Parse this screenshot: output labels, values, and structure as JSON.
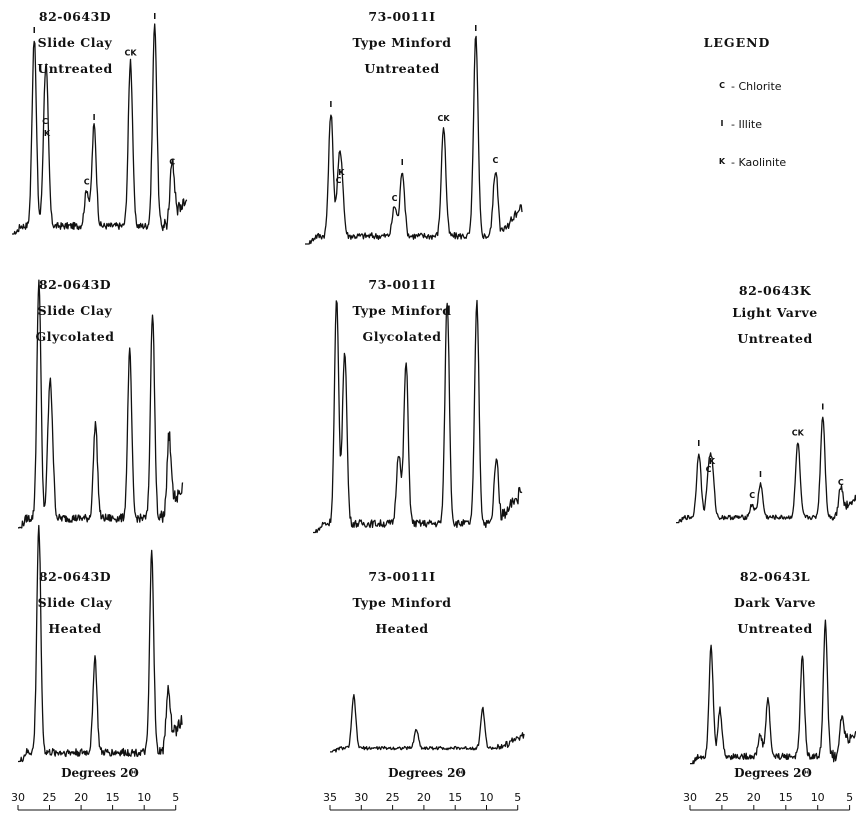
{
  "legend": {
    "title": "LEGEND",
    "items": [
      {
        "symbol": "C",
        "label": "Chlorite"
      },
      {
        "symbol": "I",
        "label": "Illite"
      },
      {
        "symbol": "K",
        "label": "Kaolinite"
      }
    ]
  },
  "chart_data": [
    {
      "type": "line",
      "labels": [
        "82-0643D",
        "Slide Clay",
        "Untreated"
      ],
      "peaks": [
        {
          "x": 26.7,
          "h": 0.93,
          "mark": "I"
        },
        {
          "x": 25.1,
          "h": 0.48,
          "mark": "C"
        },
        {
          "x": 24.8,
          "h": 0.42,
          "mark": "K"
        },
        {
          "x": 18.9,
          "h": 0.18,
          "mark": "C"
        },
        {
          "x": 17.8,
          "h": 0.5,
          "mark": "I"
        },
        {
          "x": 12.4,
          "h": 0.82,
          "mark": "CK"
        },
        {
          "x": 8.8,
          "h": 1.0,
          "mark": "I"
        },
        {
          "x": 6.2,
          "h": 0.28,
          "mark": "C"
        }
      ],
      "xlim": [
        30,
        4
      ],
      "xticks": [
        30,
        25,
        20,
        15,
        10,
        5
      ]
    },
    {
      "type": "line",
      "labels": [
        "73-0011I",
        "Type Minford",
        "Untreated"
      ],
      "peaks": [
        {
          "x": 31.3,
          "h": 0.62,
          "mark": "I"
        },
        {
          "x": 30.2,
          "h": 0.24,
          "mark": "C"
        },
        {
          "x": 29.8,
          "h": 0.28,
          "mark": "K"
        },
        {
          "x": 22.2,
          "h": 0.15,
          "mark": "C"
        },
        {
          "x": 21.1,
          "h": 0.33,
          "mark": "I"
        },
        {
          "x": 15.2,
          "h": 0.55,
          "mark": "CK"
        },
        {
          "x": 10.6,
          "h": 1.0,
          "mark": "I"
        },
        {
          "x": 7.8,
          "h": 0.34,
          "mark": "C"
        }
      ],
      "xlim": [
        35,
        4
      ],
      "xticks": [
        35,
        30,
        25,
        20,
        15,
        10,
        5
      ]
    },
    {
      "type": "line",
      "labels": [
        "82-0643D",
        "Slide Clay",
        "Glycolated"
      ],
      "peaks": [
        {
          "x": 26.7,
          "h": 1.0
        },
        {
          "x": 25.1,
          "h": 0.38
        },
        {
          "x": 24.7,
          "h": 0.32
        },
        {
          "x": 17.8,
          "h": 0.4
        },
        {
          "x": 12.4,
          "h": 0.7
        },
        {
          "x": 8.8,
          "h": 0.87
        },
        {
          "x": 6.2,
          "h": 0.3
        }
      ],
      "xlim": [
        30,
        4
      ],
      "xticks": [
        30,
        25,
        20,
        15,
        10,
        5
      ]
    },
    {
      "type": "line",
      "labels": [
        "73-0011I",
        "Type Minford",
        "Glycolated"
      ],
      "peaks": [
        {
          "x": 31.5,
          "h": 1.0
        },
        {
          "x": 30.3,
          "h": 0.78
        },
        {
          "x": 22.3,
          "h": 0.32
        },
        {
          "x": 21.2,
          "h": 0.72
        },
        {
          "x": 15.1,
          "h": 1.0
        },
        {
          "x": 10.7,
          "h": 1.0
        },
        {
          "x": 7.8,
          "h": 0.3
        }
      ],
      "xlim": [
        35,
        4
      ],
      "xticks": [
        35,
        30,
        25,
        20,
        15,
        10,
        5
      ]
    },
    {
      "type": "line",
      "labels": [
        "82-0643K",
        "Light Varve",
        "Untreated"
      ],
      "peaks": [
        {
          "x": 26.7,
          "h": 0.5,
          "mark": "I"
        },
        {
          "x": 25.3,
          "h": 0.3,
          "mark": "C"
        },
        {
          "x": 24.8,
          "h": 0.36,
          "mark": "K"
        },
        {
          "x": 19.0,
          "h": 0.1,
          "mark": "C"
        },
        {
          "x": 17.8,
          "h": 0.26,
          "mark": "I"
        },
        {
          "x": 12.4,
          "h": 0.58,
          "mark": "CK"
        },
        {
          "x": 8.8,
          "h": 0.78,
          "mark": "I"
        },
        {
          "x": 6.2,
          "h": 0.2,
          "mark": "C"
        }
      ],
      "xlim": [
        30,
        4
      ],
      "xticks": [
        30,
        25,
        20,
        15,
        10,
        5
      ]
    },
    {
      "type": "line",
      "labels": [
        "82-0643D",
        "Slide Clay",
        "Heated"
      ],
      "peaks": [
        {
          "x": 26.7,
          "h": 1.0
        },
        {
          "x": 17.8,
          "h": 0.42
        },
        {
          "x": 8.8,
          "h": 0.88
        },
        {
          "x": 6.2,
          "h": 0.24
        }
      ],
      "xlim": [
        30,
        4
      ],
      "xticks": [
        30,
        25,
        20,
        15,
        10,
        5
      ],
      "xlabel": "Degrees 2Θ"
    },
    {
      "type": "line",
      "labels": [
        "73-0011I",
        "Type Minford",
        "Heated"
      ],
      "peaks": [
        {
          "x": 31.2,
          "h": 0.55
        },
        {
          "x": 21.2,
          "h": 0.2
        },
        {
          "x": 10.6,
          "h": 0.42
        }
      ],
      "xlim": [
        35,
        4
      ],
      "xticks": [
        35,
        30,
        25,
        20,
        15,
        10,
        5
      ],
      "xlabel": "Degrees 2Θ"
    },
    {
      "type": "line",
      "labels": [
        "82-0643L",
        "Dark Varve",
        "Untreated"
      ],
      "peaks": [
        {
          "x": 26.7,
          "h": 0.62
        },
        {
          "x": 25.3,
          "h": 0.26
        },
        {
          "x": 19.0,
          "h": 0.12
        },
        {
          "x": 17.8,
          "h": 0.32
        },
        {
          "x": 12.4,
          "h": 0.55
        },
        {
          "x": 8.8,
          "h": 0.74
        },
        {
          "x": 6.2,
          "h": 0.18
        }
      ],
      "xlim": [
        30,
        4
      ],
      "xticks": [
        30,
        25,
        20,
        15,
        10,
        5
      ],
      "xlabel": "Degrees 2Θ"
    }
  ]
}
